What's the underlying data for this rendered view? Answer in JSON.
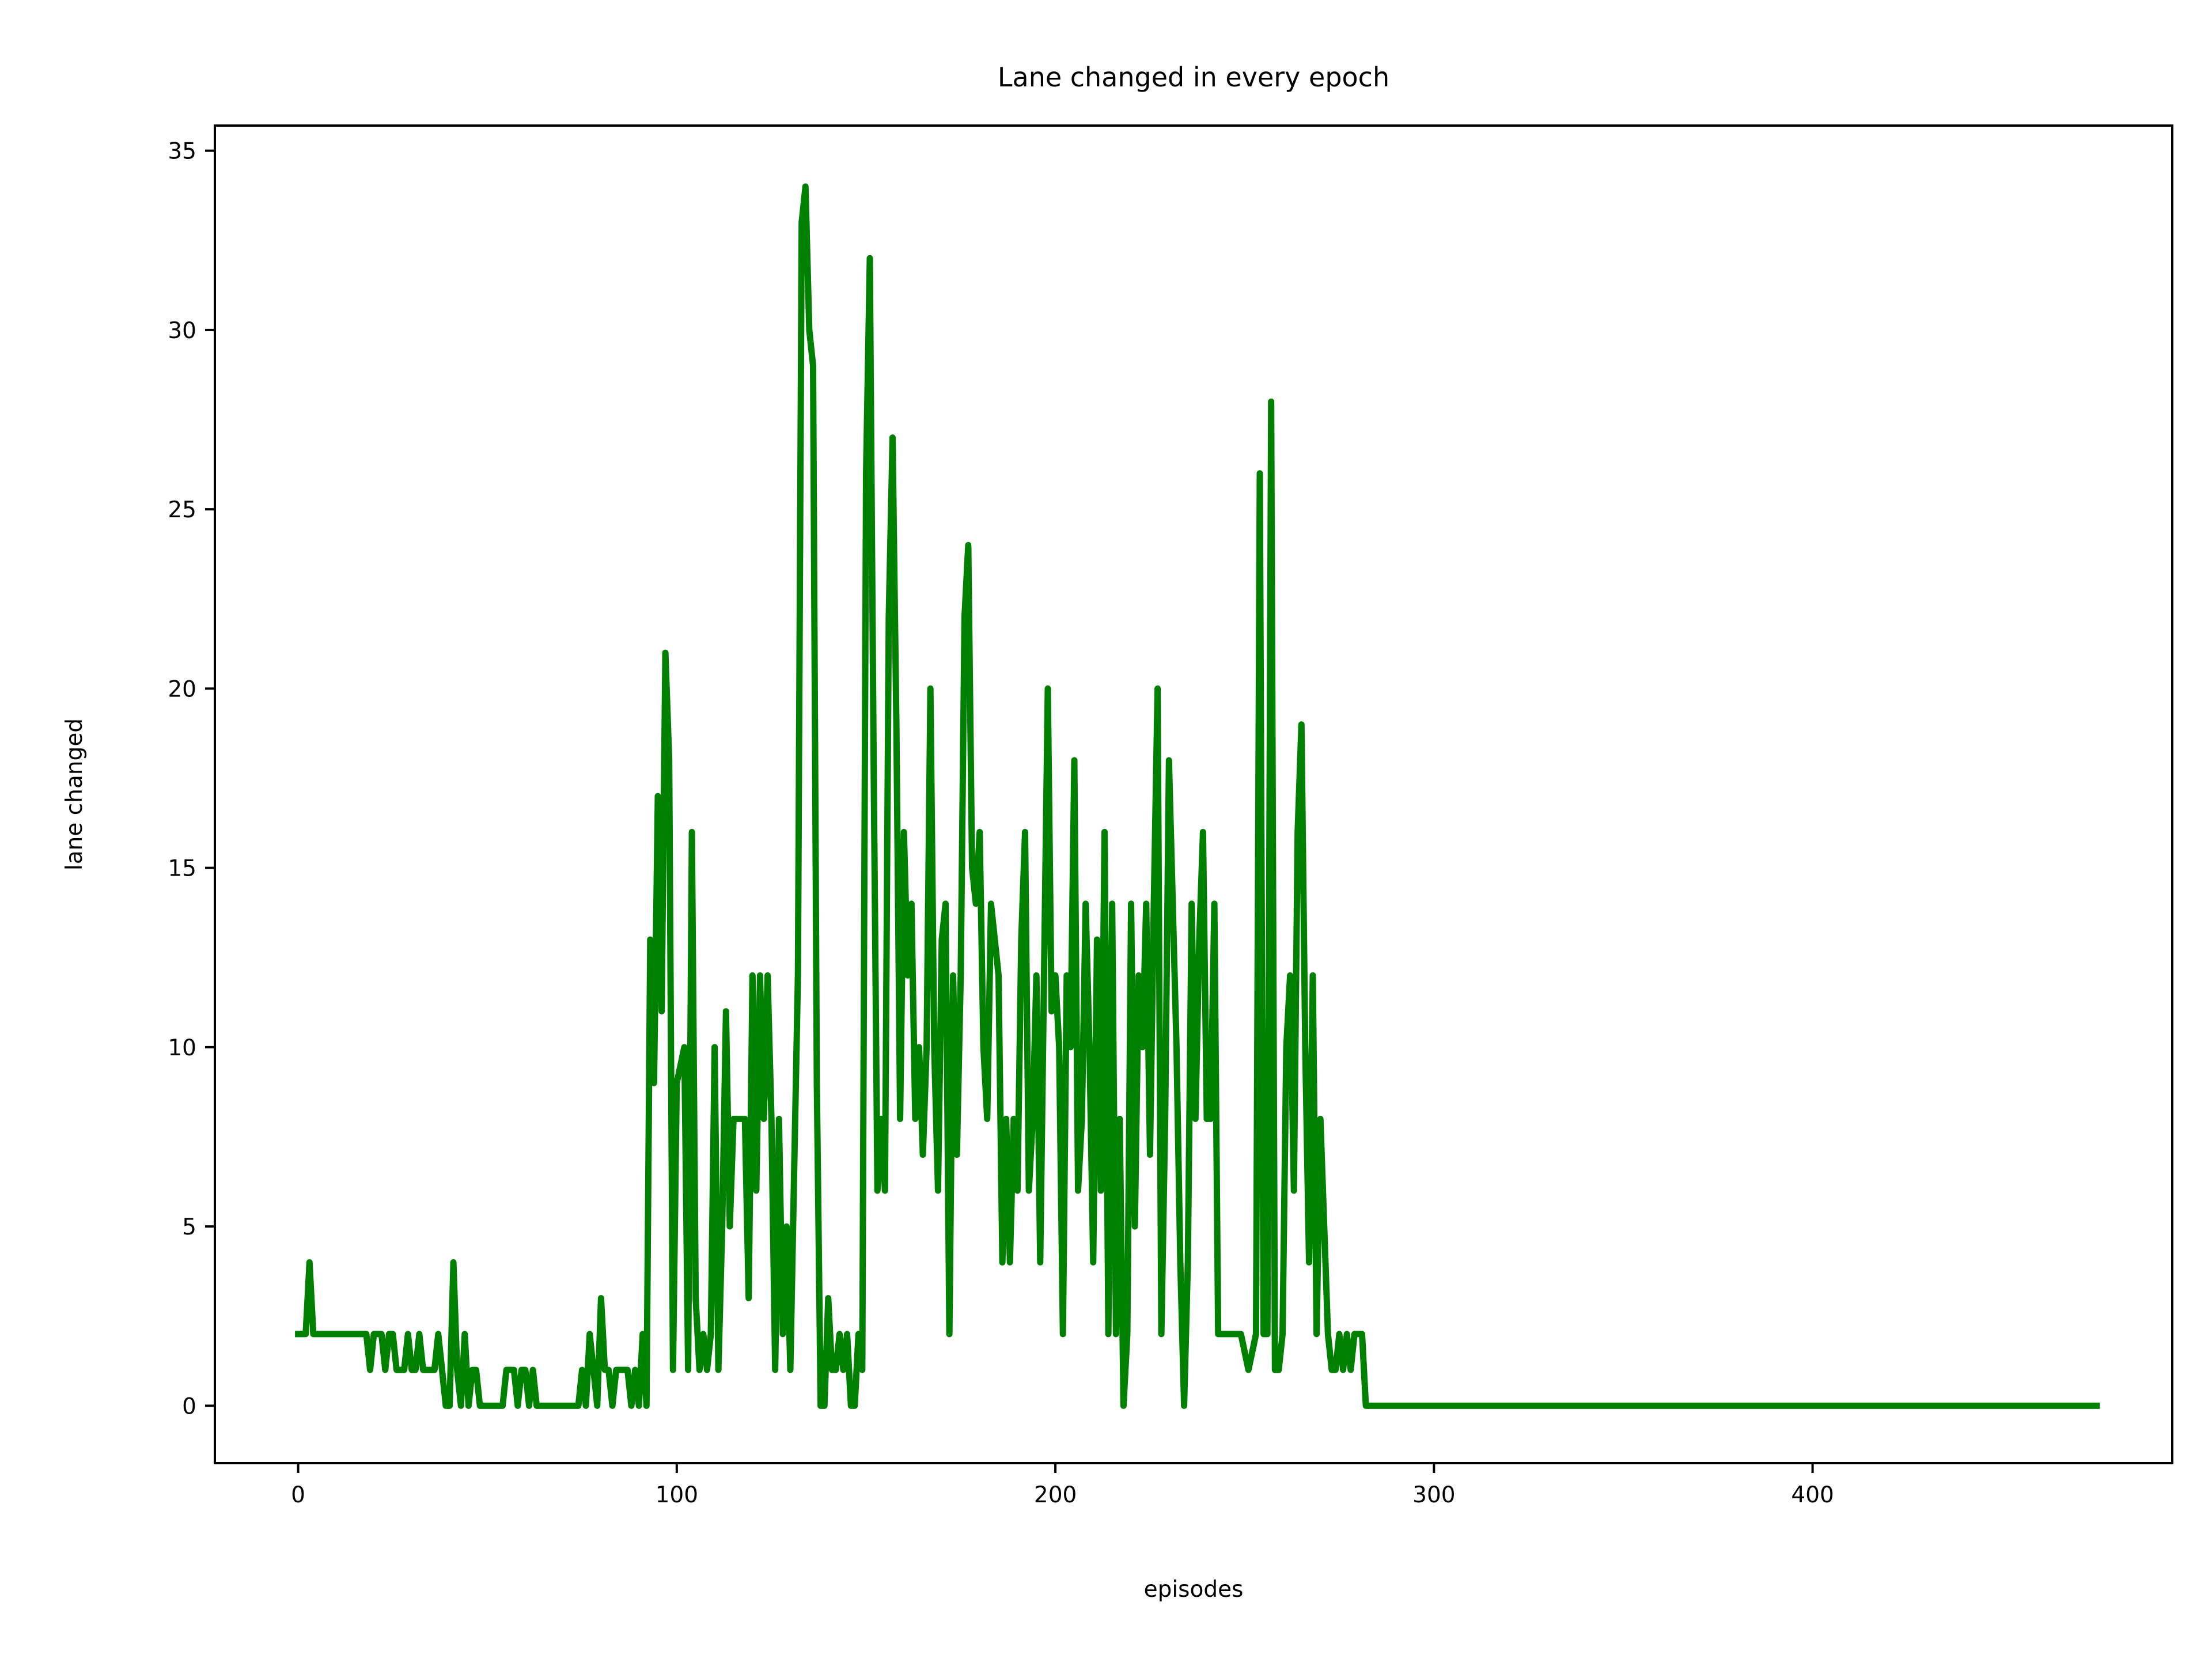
{
  "chart_data": {
    "type": "line",
    "title": "Lane changed in every epoch",
    "xlabel": "episodes",
    "ylabel": "lane changed",
    "xlim": [
      -22,
      495
    ],
    "ylim": [
      -1.6,
      35.7
    ],
    "xticks": [
      0,
      100,
      200,
      300,
      400
    ],
    "yticks": [
      0,
      5,
      10,
      15,
      20,
      25,
      30,
      35
    ],
    "grid": false,
    "legend": "none",
    "series": [
      {
        "color": "#008000",
        "points": [
          [
            0,
            2
          ],
          [
            2,
            2
          ],
          [
            3,
            4
          ],
          [
            4,
            2
          ],
          [
            6,
            2
          ],
          [
            8,
            2
          ],
          [
            10,
            2
          ],
          [
            12,
            2
          ],
          [
            14,
            2
          ],
          [
            16,
            2
          ],
          [
            18,
            2
          ],
          [
            19,
            1
          ],
          [
            20,
            2
          ],
          [
            21,
            2
          ],
          [
            22,
            2
          ],
          [
            23,
            1
          ],
          [
            24,
            2
          ],
          [
            25,
            2
          ],
          [
            26,
            1
          ],
          [
            27,
            1
          ],
          [
            28,
            1
          ],
          [
            29,
            2
          ],
          [
            30,
            1
          ],
          [
            31,
            1
          ],
          [
            32,
            2
          ],
          [
            33,
            1
          ],
          [
            34,
            1
          ],
          [
            35,
            1
          ],
          [
            36,
            1
          ],
          [
            37,
            2
          ],
          [
            38,
            1
          ],
          [
            39,
            0
          ],
          [
            40,
            0
          ],
          [
            41,
            4
          ],
          [
            42,
            1
          ],
          [
            43,
            0
          ],
          [
            44,
            2
          ],
          [
            45,
            0
          ],
          [
            46,
            1
          ],
          [
            47,
            1
          ],
          [
            48,
            0
          ],
          [
            50,
            0
          ],
          [
            52,
            0
          ],
          [
            54,
            0
          ],
          [
            55,
            1
          ],
          [
            56,
            1
          ],
          [
            57,
            1
          ],
          [
            58,
            0
          ],
          [
            59,
            1
          ],
          [
            60,
            1
          ],
          [
            61,
            0
          ],
          [
            62,
            1
          ],
          [
            63,
            0
          ],
          [
            65,
            0
          ],
          [
            67,
            0
          ],
          [
            69,
            0
          ],
          [
            71,
            0
          ],
          [
            73,
            0
          ],
          [
            74,
            0
          ],
          [
            75,
            1
          ],
          [
            76,
            0
          ],
          [
            77,
            2
          ],
          [
            78,
            1
          ],
          [
            79,
            0
          ],
          [
            80,
            3
          ],
          [
            81,
            1
          ],
          [
            82,
            1
          ],
          [
            83,
            0
          ],
          [
            84,
            1
          ],
          [
            85,
            1
          ],
          [
            86,
            1
          ],
          [
            87,
            1
          ],
          [
            88,
            0
          ],
          [
            89,
            1
          ],
          [
            90,
            0
          ],
          [
            91,
            2
          ],
          [
            92,
            0
          ],
          [
            93,
            13
          ],
          [
            94,
            9
          ],
          [
            95,
            17
          ],
          [
            96,
            11
          ],
          [
            97,
            21
          ],
          [
            98,
            18
          ],
          [
            99,
            1
          ],
          [
            100,
            9
          ],
          [
            102,
            10
          ],
          [
            103,
            1
          ],
          [
            104,
            16
          ],
          [
            105,
            3
          ],
          [
            106,
            1
          ],
          [
            107,
            2
          ],
          [
            108,
            1
          ],
          [
            109,
            2
          ],
          [
            110,
            10
          ],
          [
            111,
            1
          ],
          [
            112,
            5
          ],
          [
            113,
            11
          ],
          [
            114,
            5
          ],
          [
            115,
            8
          ],
          [
            116,
            8
          ],
          [
            117,
            8
          ],
          [
            118,
            8
          ],
          [
            119,
            3
          ],
          [
            120,
            12
          ],
          [
            121,
            6
          ],
          [
            122,
            12
          ],
          [
            123,
            8
          ],
          [
            124,
            12
          ],
          [
            125,
            8
          ],
          [
            126,
            1
          ],
          [
            127,
            8
          ],
          [
            128,
            2
          ],
          [
            129,
            5
          ],
          [
            130,
            1
          ],
          [
            132,
            12
          ],
          [
            133,
            33
          ],
          [
            134,
            34
          ],
          [
            135,
            30
          ],
          [
            136,
            29
          ],
          [
            137,
            9
          ],
          [
            138,
            0
          ],
          [
            139,
            0
          ],
          [
            140,
            3
          ],
          [
            141,
            1
          ],
          [
            142,
            1
          ],
          [
            143,
            2
          ],
          [
            144,
            1
          ],
          [
            145,
            2
          ],
          [
            146,
            0
          ],
          [
            147,
            0
          ],
          [
            148,
            2
          ],
          [
            149,
            1
          ],
          [
            150,
            26
          ],
          [
            151,
            32
          ],
          [
            152,
            18
          ],
          [
            153,
            6
          ],
          [
            154,
            8
          ],
          [
            155,
            6
          ],
          [
            156,
            22
          ],
          [
            157,
            27
          ],
          [
            158,
            19
          ],
          [
            159,
            8
          ],
          [
            160,
            16
          ],
          [
            161,
            12
          ],
          [
            162,
            14
          ],
          [
            163,
            8
          ],
          [
            164,
            10
          ],
          [
            165,
            7
          ],
          [
            166,
            10
          ],
          [
            167,
            20
          ],
          [
            168,
            10
          ],
          [
            169,
            6
          ],
          [
            170,
            13
          ],
          [
            171,
            14
          ],
          [
            172,
            2
          ],
          [
            173,
            12
          ],
          [
            174,
            7
          ],
          [
            175,
            12
          ],
          [
            176,
            22
          ],
          [
            177,
            24
          ],
          [
            178,
            15
          ],
          [
            179,
            14
          ],
          [
            180,
            16
          ],
          [
            181,
            10
          ],
          [
            182,
            8
          ],
          [
            183,
            14
          ],
          [
            185,
            12
          ],
          [
            186,
            4
          ],
          [
            187,
            8
          ],
          [
            188,
            4
          ],
          [
            189,
            8
          ],
          [
            190,
            6
          ],
          [
            191,
            13
          ],
          [
            192,
            16
          ],
          [
            193,
            6
          ],
          [
            194,
            8
          ],
          [
            195,
            12
          ],
          [
            196,
            4
          ],
          [
            197,
            12
          ],
          [
            198,
            20
          ],
          [
            199,
            11
          ],
          [
            200,
            12
          ],
          [
            201,
            10
          ],
          [
            202,
            2
          ],
          [
            203,
            12
          ],
          [
            204,
            10
          ],
          [
            205,
            18
          ],
          [
            206,
            6
          ],
          [
            207,
            8
          ],
          [
            208,
            14
          ],
          [
            209,
            10
          ],
          [
            210,
            4
          ],
          [
            211,
            13
          ],
          [
            212,
            6
          ],
          [
            213,
            16
          ],
          [
            214,
            2
          ],
          [
            215,
            14
          ],
          [
            216,
            2
          ],
          [
            217,
            8
          ],
          [
            218,
            0
          ],
          [
            219,
            2
          ],
          [
            220,
            14
          ],
          [
            221,
            5
          ],
          [
            222,
            12
          ],
          [
            223,
            10
          ],
          [
            224,
            14
          ],
          [
            225,
            7
          ],
          [
            226,
            14
          ],
          [
            227,
            20
          ],
          [
            228,
            2
          ],
          [
            229,
            8
          ],
          [
            230,
            18
          ],
          [
            231,
            14
          ],
          [
            232,
            10
          ],
          [
            233,
            4
          ],
          [
            234,
            0
          ],
          [
            235,
            4
          ],
          [
            236,
            14
          ],
          [
            237,
            8
          ],
          [
            238,
            13
          ],
          [
            239,
            16
          ],
          [
            240,
            8
          ],
          [
            241,
            8
          ],
          [
            242,
            14
          ],
          [
            243,
            2
          ],
          [
            245,
            2
          ],
          [
            247,
            2
          ],
          [
            249,
            2
          ],
          [
            251,
            1
          ],
          [
            253,
            2
          ],
          [
            254,
            26
          ],
          [
            255,
            2
          ],
          [
            256,
            2
          ],
          [
            257,
            28
          ],
          [
            258,
            1
          ],
          [
            259,
            1
          ],
          [
            260,
            2
          ],
          [
            261,
            10
          ],
          [
            262,
            12
          ],
          [
            263,
            6
          ],
          [
            264,
            16
          ],
          [
            265,
            19
          ],
          [
            266,
            10
          ],
          [
            267,
            4
          ],
          [
            268,
            12
          ],
          [
            269,
            2
          ],
          [
            270,
            8
          ],
          [
            271,
            5
          ],
          [
            272,
            2
          ],
          [
            273,
            1
          ],
          [
            274,
            1
          ],
          [
            275,
            2
          ],
          [
            276,
            1
          ],
          [
            277,
            2
          ],
          [
            278,
            1
          ],
          [
            279,
            2
          ],
          [
            280,
            2
          ],
          [
            281,
            2
          ],
          [
            282,
            0
          ],
          [
            290,
            0
          ],
          [
            300,
            0
          ],
          [
            350,
            0
          ],
          [
            400,
            0
          ],
          [
            450,
            0
          ],
          [
            475,
            0
          ]
        ]
      }
    ]
  }
}
